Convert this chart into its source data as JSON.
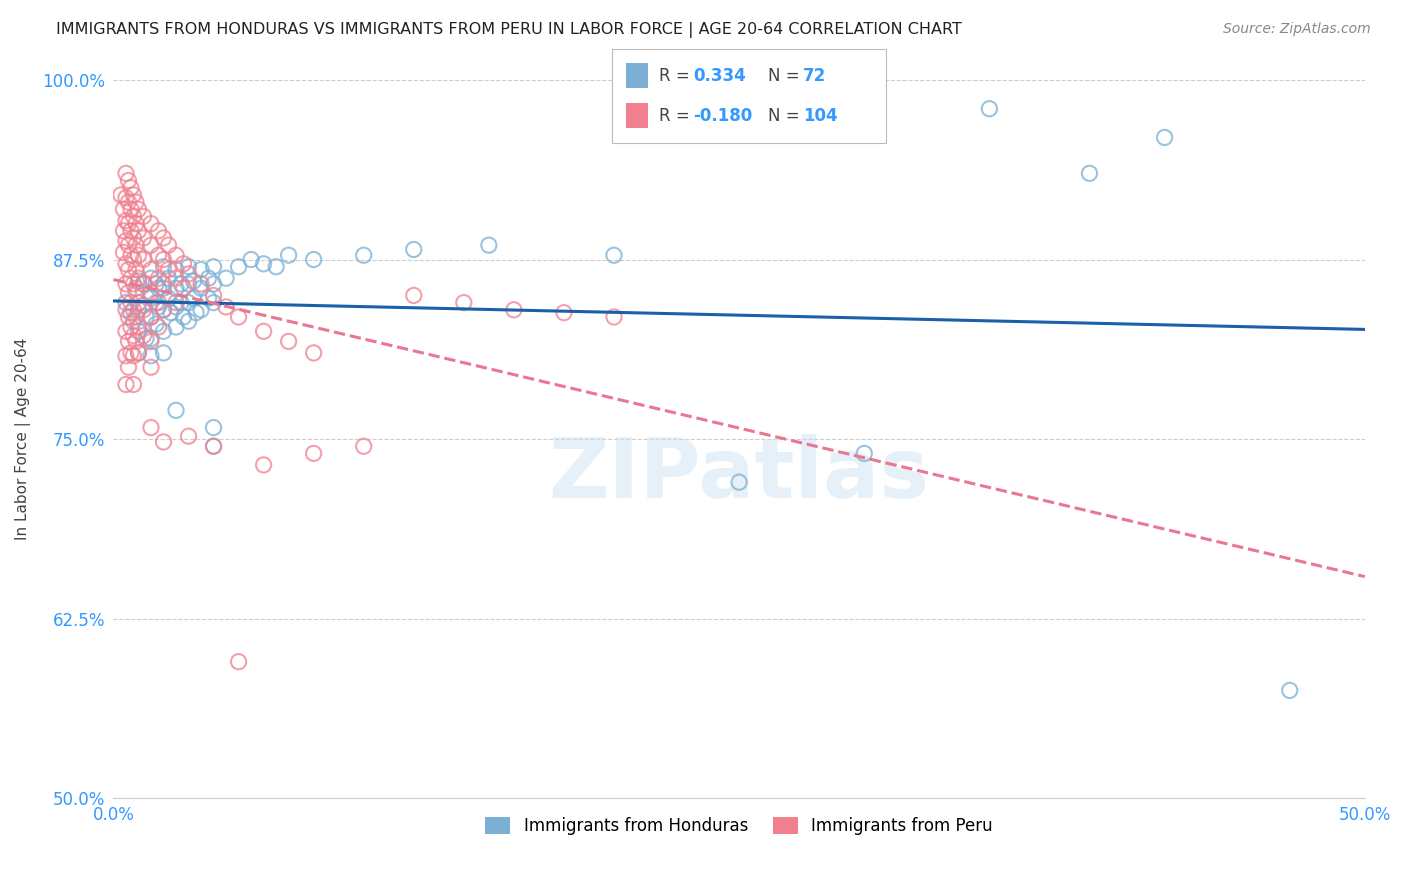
{
  "title": "IMMIGRANTS FROM HONDURAS VS IMMIGRANTS FROM PERU IN LABOR FORCE | AGE 20-64 CORRELATION CHART",
  "source": "Source: ZipAtlas.com",
  "ylabel": "In Labor Force | Age 20-64",
  "xlim": [
    0.0,
    0.5
  ],
  "ylim": [
    0.5,
    1.0
  ],
  "xtick_vals": [
    0.0,
    0.1,
    0.2,
    0.3,
    0.4,
    0.5
  ],
  "xticklabels": [
    "0.0%",
    "",
    "",
    "",
    "",
    "50.0%"
  ],
  "ytick_vals": [
    0.5,
    0.625,
    0.75,
    0.875,
    1.0
  ],
  "yticklabels": [
    "50.0%",
    "62.5%",
    "75.0%",
    "87.5%",
    "100.0%"
  ],
  "honduras_color": "#7bafd4",
  "peru_color": "#f08090",
  "honduras_R": 0.334,
  "honduras_N": 72,
  "peru_R": -0.18,
  "peru_N": 104,
  "trend_blue": "#1a5fa8",
  "trend_pink": "#e87890",
  "background_color": "#ffffff",
  "grid_color": "#cccccc",
  "watermark": "ZIPatlas",
  "title_fontsize": 11.5,
  "tick_color": "#3399ff",
  "honduras_points": [
    [
      0.005,
      0.845
    ],
    [
      0.007,
      0.838
    ],
    [
      0.008,
      0.832
    ],
    [
      0.009,
      0.855
    ],
    [
      0.01,
      0.86
    ],
    [
      0.01,
      0.84
    ],
    [
      0.01,
      0.825
    ],
    [
      0.01,
      0.81
    ],
    [
      0.012,
      0.858
    ],
    [
      0.012,
      0.843
    ],
    [
      0.013,
      0.835
    ],
    [
      0.013,
      0.82
    ],
    [
      0.015,
      0.862
    ],
    [
      0.015,
      0.848
    ],
    [
      0.015,
      0.835
    ],
    [
      0.015,
      0.82
    ],
    [
      0.015,
      0.808
    ],
    [
      0.017,
      0.858
    ],
    [
      0.017,
      0.845
    ],
    [
      0.017,
      0.83
    ],
    [
      0.018,
      0.855
    ],
    [
      0.018,
      0.842
    ],
    [
      0.02,
      0.87
    ],
    [
      0.02,
      0.855
    ],
    [
      0.02,
      0.84
    ],
    [
      0.02,
      0.825
    ],
    [
      0.02,
      0.81
    ],
    [
      0.022,
      0.862
    ],
    [
      0.022,
      0.848
    ],
    [
      0.023,
      0.838
    ],
    [
      0.025,
      0.868
    ],
    [
      0.025,
      0.855
    ],
    [
      0.025,
      0.842
    ],
    [
      0.025,
      0.828
    ],
    [
      0.025,
      0.77
    ],
    [
      0.027,
      0.858
    ],
    [
      0.027,
      0.845
    ],
    [
      0.028,
      0.835
    ],
    [
      0.03,
      0.87
    ],
    [
      0.03,
      0.858
    ],
    [
      0.03,
      0.845
    ],
    [
      0.03,
      0.832
    ],
    [
      0.032,
      0.86
    ],
    [
      0.032,
      0.848
    ],
    [
      0.033,
      0.838
    ],
    [
      0.035,
      0.868
    ],
    [
      0.035,
      0.855
    ],
    [
      0.035,
      0.84
    ],
    [
      0.038,
      0.862
    ],
    [
      0.038,
      0.848
    ],
    [
      0.04,
      0.87
    ],
    [
      0.04,
      0.858
    ],
    [
      0.04,
      0.845
    ],
    [
      0.04,
      0.758
    ],
    [
      0.04,
      0.745
    ],
    [
      0.045,
      0.862
    ],
    [
      0.05,
      0.87
    ],
    [
      0.055,
      0.875
    ],
    [
      0.06,
      0.872
    ],
    [
      0.065,
      0.87
    ],
    [
      0.07,
      0.878
    ],
    [
      0.08,
      0.875
    ],
    [
      0.1,
      0.878
    ],
    [
      0.12,
      0.882
    ],
    [
      0.15,
      0.885
    ],
    [
      0.2,
      0.878
    ],
    [
      0.25,
      0.72
    ],
    [
      0.3,
      0.74
    ],
    [
      0.35,
      0.98
    ],
    [
      0.39,
      0.935
    ],
    [
      0.42,
      0.96
    ],
    [
      0.47,
      0.575
    ]
  ],
  "peru_points": [
    [
      0.003,
      0.92
    ],
    [
      0.004,
      0.91
    ],
    [
      0.004,
      0.895
    ],
    [
      0.004,
      0.88
    ],
    [
      0.005,
      0.935
    ],
    [
      0.005,
      0.918
    ],
    [
      0.005,
      0.902
    ],
    [
      0.005,
      0.888
    ],
    [
      0.005,
      0.872
    ],
    [
      0.005,
      0.858
    ],
    [
      0.005,
      0.84
    ],
    [
      0.005,
      0.825
    ],
    [
      0.005,
      0.808
    ],
    [
      0.005,
      0.788
    ],
    [
      0.006,
      0.93
    ],
    [
      0.006,
      0.915
    ],
    [
      0.006,
      0.9
    ],
    [
      0.006,
      0.885
    ],
    [
      0.006,
      0.868
    ],
    [
      0.006,
      0.852
    ],
    [
      0.006,
      0.835
    ],
    [
      0.006,
      0.818
    ],
    [
      0.006,
      0.8
    ],
    [
      0.007,
      0.925
    ],
    [
      0.007,
      0.91
    ],
    [
      0.007,
      0.895
    ],
    [
      0.007,
      0.878
    ],
    [
      0.007,
      0.862
    ],
    [
      0.007,
      0.845
    ],
    [
      0.007,
      0.828
    ],
    [
      0.007,
      0.81
    ],
    [
      0.008,
      0.92
    ],
    [
      0.008,
      0.905
    ],
    [
      0.008,
      0.89
    ],
    [
      0.008,
      0.875
    ],
    [
      0.008,
      0.858
    ],
    [
      0.008,
      0.84
    ],
    [
      0.008,
      0.822
    ],
    [
      0.008,
      0.808
    ],
    [
      0.008,
      0.788
    ],
    [
      0.009,
      0.915
    ],
    [
      0.009,
      0.9
    ],
    [
      0.009,
      0.885
    ],
    [
      0.009,
      0.868
    ],
    [
      0.009,
      0.852
    ],
    [
      0.009,
      0.835
    ],
    [
      0.009,
      0.818
    ],
    [
      0.01,
      0.91
    ],
    [
      0.01,
      0.895
    ],
    [
      0.01,
      0.878
    ],
    [
      0.01,
      0.862
    ],
    [
      0.01,
      0.845
    ],
    [
      0.01,
      0.828
    ],
    [
      0.01,
      0.81
    ],
    [
      0.012,
      0.905
    ],
    [
      0.012,
      0.89
    ],
    [
      0.012,
      0.875
    ],
    [
      0.012,
      0.858
    ],
    [
      0.012,
      0.84
    ],
    [
      0.012,
      0.822
    ],
    [
      0.015,
      0.9
    ],
    [
      0.015,
      0.885
    ],
    [
      0.015,
      0.868
    ],
    [
      0.015,
      0.852
    ],
    [
      0.015,
      0.835
    ],
    [
      0.015,
      0.818
    ],
    [
      0.015,
      0.8
    ],
    [
      0.015,
      0.758
    ],
    [
      0.018,
      0.895
    ],
    [
      0.018,
      0.878
    ],
    [
      0.018,
      0.862
    ],
    [
      0.018,
      0.845
    ],
    [
      0.018,
      0.828
    ],
    [
      0.02,
      0.89
    ],
    [
      0.02,
      0.875
    ],
    [
      0.02,
      0.858
    ],
    [
      0.02,
      0.84
    ],
    [
      0.022,
      0.885
    ],
    [
      0.022,
      0.868
    ],
    [
      0.025,
      0.878
    ],
    [
      0.025,
      0.862
    ],
    [
      0.025,
      0.845
    ],
    [
      0.028,
      0.872
    ],
    [
      0.028,
      0.855
    ],
    [
      0.03,
      0.865
    ],
    [
      0.035,
      0.858
    ],
    [
      0.04,
      0.85
    ],
    [
      0.045,
      0.842
    ],
    [
      0.05,
      0.835
    ],
    [
      0.06,
      0.825
    ],
    [
      0.07,
      0.818
    ],
    [
      0.08,
      0.81
    ],
    [
      0.04,
      0.745
    ],
    [
      0.02,
      0.748
    ],
    [
      0.03,
      0.752
    ],
    [
      0.05,
      0.595
    ],
    [
      0.06,
      0.732
    ],
    [
      0.08,
      0.74
    ],
    [
      0.1,
      0.745
    ],
    [
      0.12,
      0.85
    ],
    [
      0.14,
      0.845
    ],
    [
      0.16,
      0.84
    ],
    [
      0.18,
      0.838
    ],
    [
      0.2,
      0.835
    ]
  ]
}
